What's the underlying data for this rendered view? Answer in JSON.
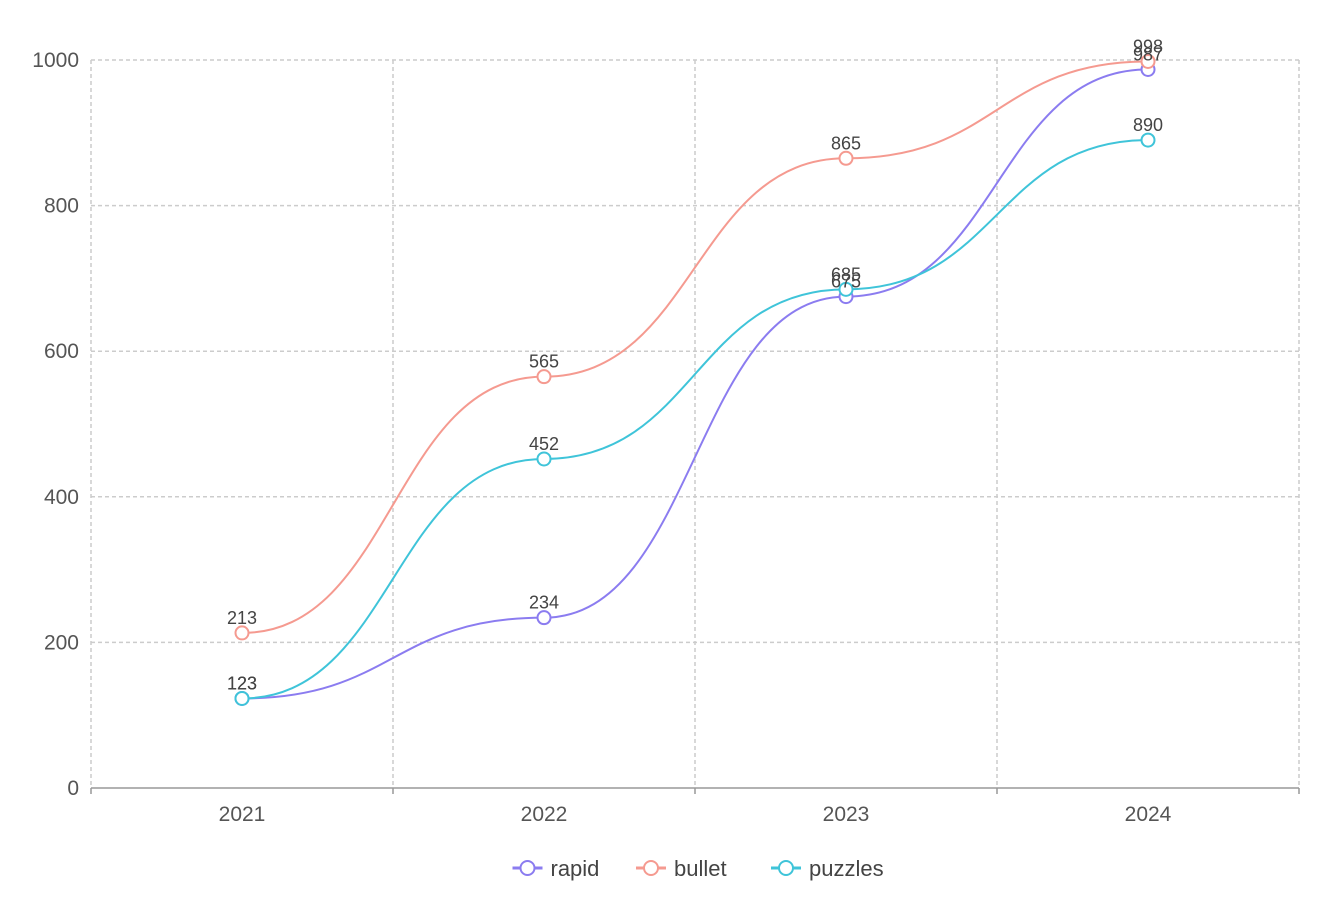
{
  "chart_data": {
    "type": "line",
    "title": "",
    "xlabel": "",
    "ylabel": "",
    "categories": [
      "2021",
      "2022",
      "2023",
      "2024"
    ],
    "ylim": [
      0,
      1000
    ],
    "yticks": [
      0,
      200,
      400,
      600,
      800,
      1000
    ],
    "grid": true,
    "legend_position": "bottom-center",
    "smooth": true,
    "show_data_labels": true,
    "series": [
      {
        "name": "rapid",
        "color": "#8b7cf0",
        "values": [
          123,
          234,
          675,
          987
        ]
      },
      {
        "name": "bullet",
        "color": "#f59a90",
        "values": [
          213,
          565,
          865,
          998
        ]
      },
      {
        "name": "puzzles",
        "color": "#3fc4d9",
        "values": [
          123,
          452,
          685,
          890
        ]
      }
    ]
  }
}
